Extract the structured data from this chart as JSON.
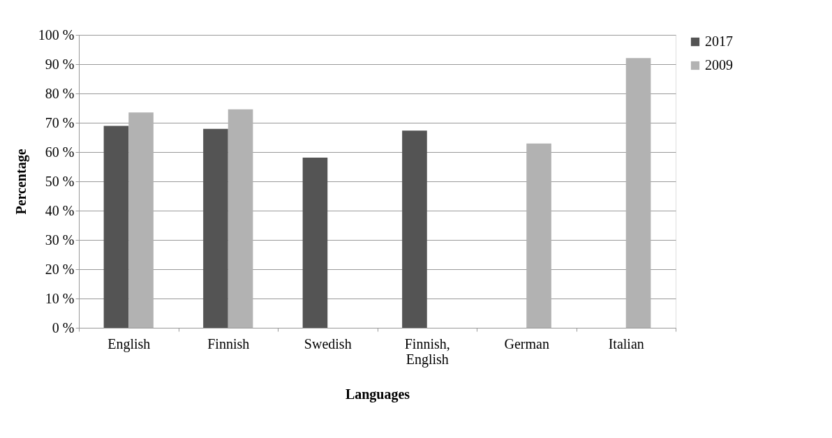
{
  "chart_data": {
    "type": "bar",
    "xlabel": "Languages",
    "ylabel": "Percentage",
    "categories": [
      "English",
      "Finnish",
      "Swedish",
      "Finnish, English",
      "German",
      "Italian"
    ],
    "series": [
      {
        "name": "2017",
        "color": "#545454",
        "values": [
          68.9,
          67.9,
          58.1,
          67.3,
          null,
          null
        ]
      },
      {
        "name": "2009",
        "color": "#b2b2b2",
        "values": [
          73.5,
          74.6,
          null,
          null,
          62.9,
          92.1
        ]
      }
    ],
    "ylim": [
      0,
      100
    ],
    "yticks": [
      {
        "value": 0,
        "label": "0 %"
      },
      {
        "value": 10,
        "label": "10 %"
      },
      {
        "value": 20,
        "label": "20 %"
      },
      {
        "value": 30,
        "label": "30 %"
      },
      {
        "value": 40,
        "label": "40 %"
      },
      {
        "value": 50,
        "label": "50 %"
      },
      {
        "value": 60,
        "label": "60 %"
      },
      {
        "value": 70,
        "label": "70 %"
      },
      {
        "value": 80,
        "label": "80 %"
      },
      {
        "value": 90,
        "label": "90 %"
      },
      {
        "value": 100,
        "label": "100 %"
      }
    ],
    "grid": "y",
    "legend": "right"
  }
}
